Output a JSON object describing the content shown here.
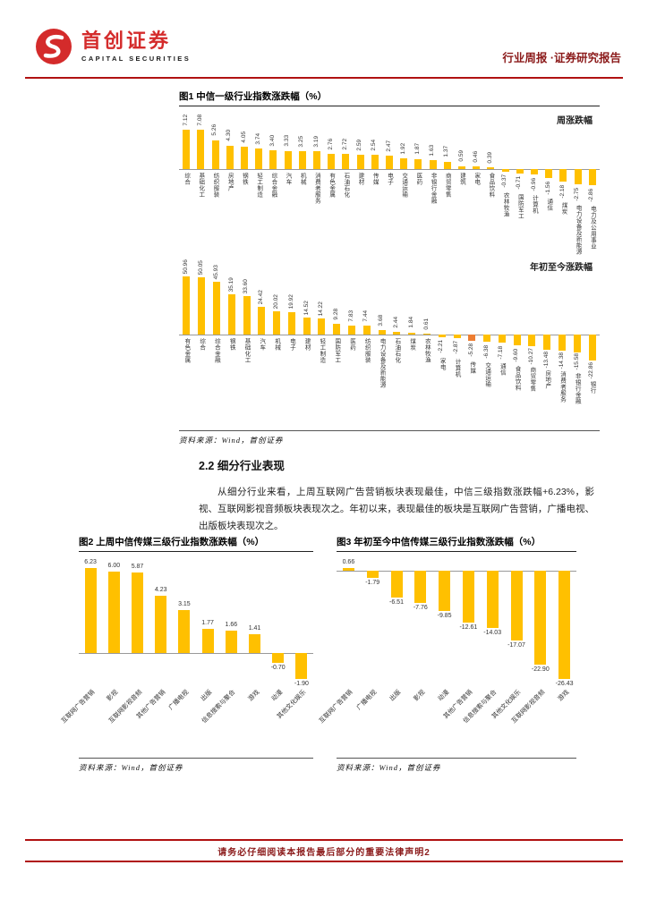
{
  "header": {
    "brand_cn": "首创证券",
    "brand_en": "CAPITAL SECURITIES",
    "right_text": "行业周报 ·证券研究报告"
  },
  "figures": {
    "fig1": {
      "title": "图1 中信一级行业指数涨跌幅（%）",
      "source": "资料来源：Wind，首创证券"
    },
    "fig2": {
      "title": "图2 上周中信传媒三级行业指数涨跌幅（%）",
      "source": "资料来源：Wind，首创证券"
    },
    "fig3": {
      "title": "图3 年初至今中信传媒三级行业指数涨跌幅（%）",
      "source": "资料来源：Wind，首创证券"
    }
  },
  "section": {
    "heading": "2.2 细分行业表现",
    "paragraph": "从细分行业来看，上周互联网广告营销板块表现最佳，中信三级指数涨跌幅+6.23%，影视、互联网影视音频板块表现次之。年初以来，表现最佳的板块是互联网广告营销，广播电视、出版板块表现次之。"
  },
  "footer": {
    "text": "请务必仔细阅读本报告最后部分的重要法律声明",
    "page": "2"
  },
  "colors": {
    "bar": "#FFC000",
    "highlight_bar": "#ED7D31",
    "rule_red": "#B01111",
    "accent_text": "#8B1A1A",
    "brand_red": "#D42B2B"
  },
  "chart_data": [
    {
      "type": "bar",
      "title": "中信一级行业指数涨跌幅（%）",
      "annotation": "周涨跌幅",
      "legend_position": "top-right",
      "grid": false,
      "categories": [
        "综合",
        "基础化工",
        "纺织服装",
        "房地产",
        "钢铁",
        "轻工制造",
        "综合金融",
        "汽车",
        "机械",
        "消费者服务",
        "有色金属",
        "石油石化",
        "建材",
        "传媒",
        "电子",
        "交通运输",
        "医药",
        "非银行金融",
        "商贸零售",
        "建筑",
        "家电",
        "食品饮料",
        "农林牧渔",
        "国防军工",
        "计算机",
        "通信",
        "煤炭",
        "电力设备及新能源",
        "电力及公用事业"
      ],
      "values": [
        7.12,
        7.08,
        5.26,
        4.3,
        4.05,
        3.74,
        3.4,
        3.33,
        3.25,
        3.19,
        2.76,
        2.72,
        2.59,
        2.54,
        2.47,
        1.92,
        1.87,
        1.63,
        1.37,
        0.59,
        0.46,
        0.39,
        -0.37,
        -0.71,
        -0.96,
        -1.56,
        -2.18,
        -2.75,
        -2.86
      ]
    },
    {
      "type": "bar",
      "title": "中信一级行业指数涨跌幅（%）",
      "annotation": "年初至今涨跌幅",
      "legend_position": "top-right",
      "grid": false,
      "highlight_index": 19,
      "categories": [
        "有色金属",
        "综合",
        "综合金融",
        "钢铁",
        "基础化工",
        "汽车",
        "机械",
        "电子",
        "建材",
        "轻工制造",
        "国防军工",
        "医药",
        "纺织服装",
        "电力设备及新能源",
        "石油石化",
        "煤炭",
        "农林牧渔",
        "家电",
        "计算机",
        "传媒",
        "交通运输",
        "通信",
        "食品饮料",
        "商贸零售",
        "房地产",
        "消费者服务",
        "非银行金融",
        "银行"
      ],
      "values": [
        50.96,
        50.05,
        45.93,
        35.19,
        33.6,
        24.42,
        20.02,
        19.92,
        14.52,
        14.22,
        9.28,
        7.83,
        7.44,
        3.68,
        2.44,
        1.84,
        0.61,
        -2.21,
        -2.87,
        -5.28,
        -6.38,
        -7.18,
        -9.6,
        -10.27,
        -13.48,
        -14.38,
        -15.58,
        -22.86
      ]
    },
    {
      "type": "bar",
      "title": "上周中信传媒三级行业指数涨跌幅（%）",
      "grid": false,
      "categories": [
        "互联网广告营销",
        "影视",
        "互联网影视音频",
        "其他广告营销",
        "广播电视",
        "出版",
        "信息搜索与聚合",
        "游戏",
        "动漫",
        "其他文化娱乐"
      ],
      "values": [
        6.23,
        6.0,
        5.87,
        4.23,
        3.15,
        1.77,
        1.66,
        1.41,
        -0.7,
        -1.9
      ]
    },
    {
      "type": "bar",
      "title": "年初至今中信传媒三级行业指数涨跌幅（%）",
      "grid": false,
      "categories": [
        "互联网广告营销",
        "广播电视",
        "出版",
        "影视",
        "动漫",
        "其他广告营销",
        "信息搜索与聚合",
        "其他文化娱乐",
        "互联网影视音频",
        "游戏"
      ],
      "values": [
        0.66,
        -1.79,
        -6.51,
        -7.76,
        -9.85,
        -12.61,
        -14.03,
        -17.07,
        -22.9,
        -26.43
      ]
    }
  ]
}
